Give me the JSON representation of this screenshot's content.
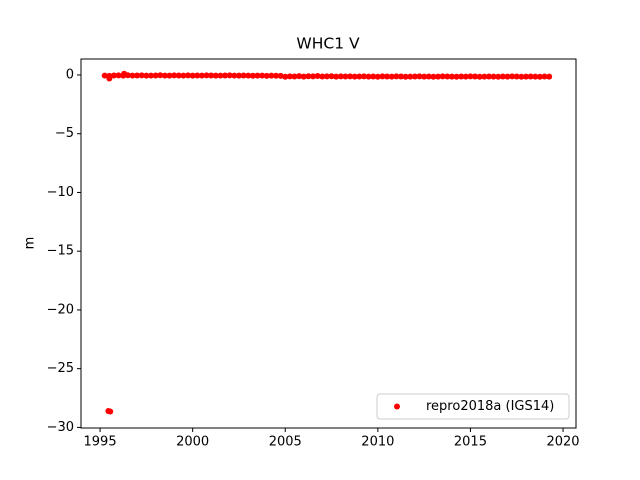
{
  "chart_data": {
    "type": "scatter",
    "title": "WHC1 V",
    "y_label": "m",
    "series": [
      {
        "name": "repro2018a (IGS14)",
        "color": "#ff0000",
        "x": [
          1995.25,
          1995.5,
          1995.75,
          1996,
          1996.25,
          1996.5,
          1996.75,
          1997,
          1997.25,
          1997.5,
          1997.75,
          1998,
          1998.25,
          1998.5,
          1998.75,
          1999,
          1999.25,
          1999.5,
          1999.75,
          2000,
          2000.25,
          2000.5,
          2000.75,
          2001,
          2001.25,
          2001.5,
          2001.75,
          2002,
          2002.25,
          2002.5,
          2002.75,
          2003,
          2003.25,
          2003.5,
          2003.75,
          2004,
          2004.25,
          2004.5,
          2004.75,
          2005,
          2005.25,
          2005.5,
          2005.75,
          2006,
          2006.25,
          2006.5,
          2006.75,
          2007,
          2007.25,
          2007.5,
          2007.75,
          2008,
          2008.25,
          2008.5,
          2008.75,
          2009,
          2009.25,
          2009.5,
          2009.75,
          2010,
          2010.25,
          2010.5,
          2010.75,
          2011,
          2011.25,
          2011.5,
          2011.75,
          2012,
          2012.25,
          2012.5,
          2012.75,
          2013,
          2013.25,
          2013.5,
          2013.75,
          2014,
          2014.25,
          2014.5,
          2014.75,
          2015,
          2015.25,
          2015.5,
          2015.75,
          2016,
          2016.25,
          2016.5,
          2016.75,
          2017,
          2017.25,
          2017.5,
          2017.75,
          2018,
          2018.25,
          2018.5,
          2018.75,
          2019,
          2019.25,
          1995.45,
          1995.55,
          1995.5,
          1996.3
        ],
        "values": [
          -0.05,
          -0.08,
          -0.04,
          -0.03,
          -0.06,
          -0.02,
          -0.05,
          -0.04,
          -0.03,
          -0.06,
          -0.05,
          -0.04,
          -0.02,
          -0.05,
          -0.06,
          -0.03,
          -0.04,
          -0.05,
          -0.03,
          -0.06,
          -0.04,
          -0.05,
          -0.03,
          -0.04,
          -0.06,
          -0.05,
          -0.04,
          -0.03,
          -0.05,
          -0.06,
          -0.04,
          -0.05,
          -0.07,
          -0.06,
          -0.05,
          -0.08,
          -0.06,
          -0.07,
          -0.08,
          -0.15,
          -0.12,
          -0.13,
          -0.1,
          -0.14,
          -0.11,
          -0.12,
          -0.09,
          -0.13,
          -0.12,
          -0.11,
          -0.14,
          -0.12,
          -0.13,
          -0.12,
          -0.14,
          -0.13,
          -0.12,
          -0.14,
          -0.13,
          -0.15,
          -0.12,
          -0.13,
          -0.14,
          -0.12,
          -0.13,
          -0.15,
          -0.14,
          -0.13,
          -0.12,
          -0.14,
          -0.13,
          -0.15,
          -0.14,
          -0.12,
          -0.13,
          -0.14,
          -0.15,
          -0.13,
          -0.14,
          -0.12,
          -0.13,
          -0.15,
          -0.14,
          -0.13,
          -0.14,
          -0.15,
          -0.13,
          -0.14,
          -0.12,
          -0.13,
          -0.15,
          -0.14,
          -0.13,
          -0.14,
          -0.15,
          -0.13,
          -0.14,
          -28.6,
          -28.65,
          -0.3,
          0.1
        ]
      }
    ],
    "xlim": [
      1993.97,
      2020.7
    ],
    "xticks": [
      1995,
      2000,
      2005,
      2010,
      2015,
      2020
    ],
    "ylim": [
      -30.05,
      1.36
    ],
    "yticks": [
      0,
      {
        "value": -5,
        "label": "−5"
      },
      {
        "value": -10,
        "label": "−10"
      },
      {
        "value": -15,
        "label": "−15"
      },
      {
        "value": -20,
        "label": "−20"
      },
      {
        "value": -25,
        "label": "−25"
      },
      {
        "value": -30,
        "label": "−30"
      }
    ],
    "legend": "lower right"
  }
}
